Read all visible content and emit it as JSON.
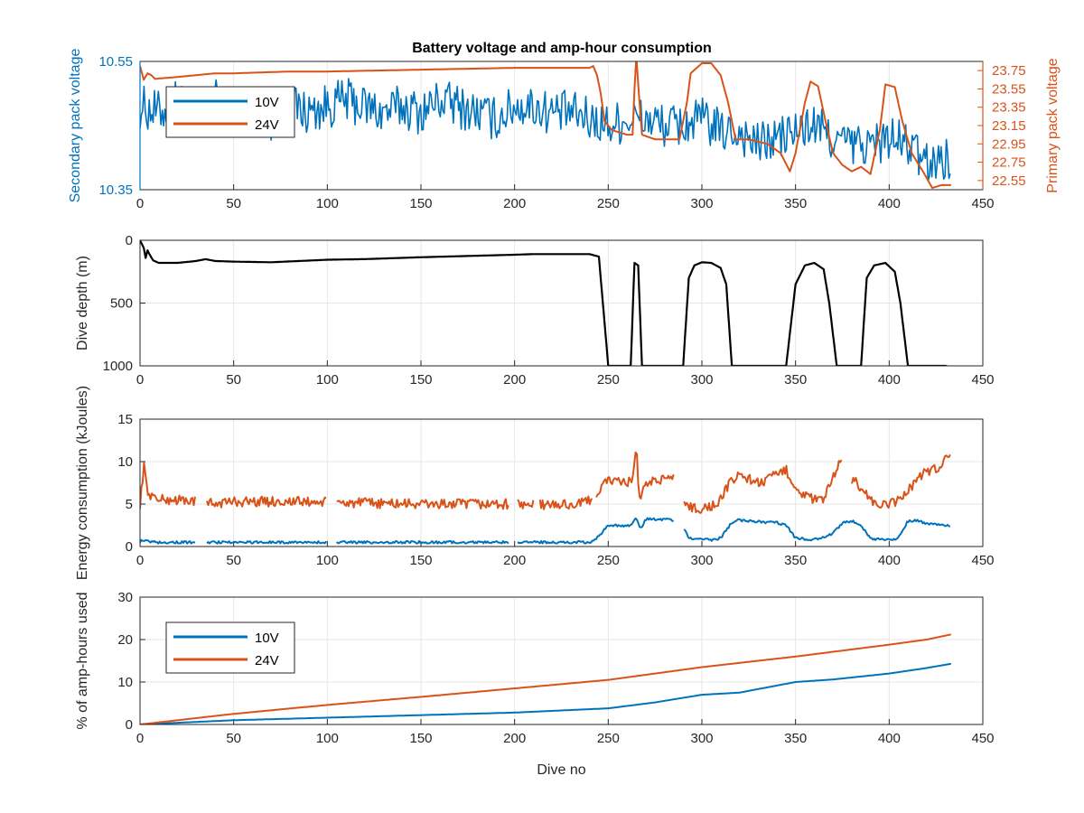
{
  "figure": {
    "title": "Battery voltage and amp-hour consumption",
    "colors": {
      "blue": "#0072bd",
      "orange": "#d95319",
      "black": "#000000",
      "grid": "#e6e6e6",
      "axis": "#262626"
    }
  },
  "chart_data": [
    {
      "type": "line",
      "title": "Battery voltage and amp-hour consumption",
      "xlabel": "",
      "ylabel_left": "Secondary pack voltage",
      "ylabel_right": "Primary pack voltage",
      "xlim": [
        0,
        450
      ],
      "ylim_left": [
        10.35,
        10.55
      ],
      "ylim_right": [
        22.45,
        23.85
      ],
      "x_ticks": [
        "0",
        "50",
        "100",
        "150",
        "200",
        "250",
        "300",
        "350",
        "400",
        "450"
      ],
      "y_ticks_left": [
        "10.35",
        "10.55"
      ],
      "y_ticks_right": [
        "22.55",
        "22.75",
        "22.95",
        "23.15",
        "23.35",
        "23.55",
        "23.75"
      ],
      "grid": true,
      "legend": {
        "placement": "top-left",
        "entries": [
          "10V",
          "24V"
        ]
      },
      "series": [
        {
          "name": "10V",
          "axis": "left",
          "color": "#0072bd",
          "x": [
            0,
            10,
            20,
            30,
            40,
            50,
            60,
            70,
            80,
            90,
            100,
            110,
            120,
            130,
            140,
            150,
            160,
            170,
            180,
            190,
            200,
            210,
            220,
            230,
            240,
            250,
            260,
            270,
            280,
            290,
            300,
            310,
            320,
            330,
            340,
            350,
            360,
            370,
            380,
            390,
            400,
            410,
            420,
            430,
            433
          ],
          "y": [
            10.48,
            10.47,
            10.49,
            10.47,
            10.49,
            10.47,
            10.48,
            10.46,
            10.48,
            10.47,
            10.48,
            10.49,
            10.48,
            10.47,
            10.48,
            10.47,
            10.49,
            10.48,
            10.47,
            10.46,
            10.48,
            10.48,
            10.47,
            10.47,
            10.46,
            10.45,
            10.46,
            10.46,
            10.45,
            10.45,
            10.46,
            10.44,
            10.44,
            10.42,
            10.43,
            10.44,
            10.45,
            10.43,
            10.42,
            10.42,
            10.43,
            10.42,
            10.39,
            10.4,
            10.4
          ],
          "noise": 0.035
        },
        {
          "name": "24V",
          "axis": "right",
          "color": "#d95319",
          "x": [
            0,
            2,
            4,
            6,
            8,
            20,
            30,
            40,
            50,
            80,
            100,
            150,
            200,
            240,
            242,
            244,
            246,
            248,
            252,
            260,
            263,
            264,
            265,
            266,
            268,
            275,
            285,
            288,
            292,
            294,
            300,
            305,
            310,
            314,
            318,
            325,
            335,
            342,
            347,
            350,
            355,
            358,
            362,
            366,
            370,
            375,
            380,
            385,
            390,
            395,
            398,
            403,
            407,
            412,
            418,
            423,
            428,
            433
          ],
          "y": [
            23.8,
            23.65,
            23.72,
            23.7,
            23.66,
            23.68,
            23.7,
            23.72,
            23.72,
            23.74,
            23.74,
            23.76,
            23.78,
            23.78,
            23.8,
            23.7,
            23.5,
            23.2,
            23.1,
            23.05,
            23.05,
            23.55,
            23.9,
            23.6,
            23.05,
            23.0,
            23.0,
            23.0,
            23.4,
            23.72,
            23.83,
            23.83,
            23.7,
            23.4,
            23.0,
            23.0,
            22.95,
            22.85,
            22.65,
            22.85,
            23.4,
            23.63,
            23.58,
            23.2,
            22.85,
            22.72,
            22.65,
            22.7,
            22.62,
            23.1,
            23.6,
            23.57,
            23.2,
            22.85,
            22.65,
            22.47,
            22.5,
            22.5
          ]
        }
      ]
    },
    {
      "type": "line",
      "title": "",
      "xlabel": "",
      "ylabel": "Dive depth (m)",
      "xlim": [
        0,
        450
      ],
      "ylim": [
        0,
        1000
      ],
      "y_reversed": true,
      "x_ticks": [
        "0",
        "50",
        "100",
        "150",
        "200",
        "250",
        "300",
        "350",
        "400",
        "450"
      ],
      "y_ticks": [
        "0",
        "500",
        "1000"
      ],
      "grid": true,
      "series": [
        {
          "color": "#000000",
          "x": [
            0,
            2,
            3,
            4,
            5,
            7,
            10,
            20,
            30,
            35,
            40,
            50,
            70,
            100,
            120,
            150,
            200,
            210,
            220,
            240,
            245,
            250,
            252,
            260,
            262,
            264,
            266,
            268,
            270,
            275,
            290,
            293,
            296,
            300,
            305,
            310,
            313,
            316,
            320,
            335,
            345,
            350,
            355,
            360,
            365,
            368,
            372,
            380,
            385,
            388,
            392,
            398,
            403,
            406,
            410,
            420,
            430,
            433
          ],
          "y": [
            0,
            60,
            140,
            80,
            110,
            160,
            180,
            180,
            165,
            150,
            165,
            170,
            175,
            155,
            150,
            135,
            115,
            110,
            110,
            110,
            130,
            1000,
            1000,
            1000,
            1000,
            180,
            200,
            1000,
            1000,
            1000,
            1000,
            300,
            200,
            175,
            180,
            220,
            350,
            1000,
            1000,
            1000,
            1000,
            350,
            200,
            180,
            230,
            500,
            1000,
            1000,
            1000,
            300,
            200,
            180,
            250,
            500,
            1000,
            1000,
            1000,
            1010
          ]
        }
      ]
    },
    {
      "type": "line",
      "title": "",
      "xlabel": "",
      "ylabel": "Energy consumption (kJoules)",
      "xlim": [
        0,
        450
      ],
      "ylim": [
        0,
        15
      ],
      "x_ticks": [
        "0",
        "50",
        "100",
        "150",
        "200",
        "250",
        "300",
        "350",
        "400",
        "450"
      ],
      "y_ticks": [
        "0",
        "5",
        "10",
        "15"
      ],
      "grid": true,
      "series": [
        {
          "name": "24V",
          "color": "#d95319",
          "x": [
            0,
            2,
            4,
            6,
            10,
            20,
            28,
            35,
            50,
            80,
            100,
            150,
            190,
            195,
            200,
            220,
            235,
            240,
            245,
            250,
            255,
            260,
            263,
            265,
            266,
            267,
            270,
            280,
            285,
            290,
            295,
            300,
            305,
            310,
            315,
            320,
            325,
            330,
            335,
            340,
            345,
            350,
            355,
            360,
            365,
            370,
            375,
            380,
            385,
            390,
            395,
            400,
            405,
            410,
            415,
            420,
            425,
            430,
            433
          ],
          "y": [
            5,
            9.5,
            6.5,
            6,
            5.5,
            5.5,
            5.4,
            5,
            5.3,
            5.3,
            5.2,
            5,
            5,
            5,
            5,
            4.9,
            5,
            5.5,
            6.5,
            8,
            7.5,
            7.5,
            8,
            12,
            7,
            5,
            7.5,
            8,
            8,
            5.5,
            4.5,
            4.5,
            4.7,
            5.5,
            7.5,
            8.5,
            8,
            7.5,
            7.8,
            8.5,
            9,
            7,
            6,
            5.5,
            5.5,
            8,
            10.5,
            8,
            7,
            5.5,
            4.8,
            4.9,
            5.5,
            6.5,
            8,
            9,
            9,
            10.5,
            10.5
          ],
          "gaps": [
            [
              30,
              35
            ],
            [
              100,
              105
            ],
            [
              197,
              201
            ],
            [
              210,
              213
            ],
            [
              242,
              243
            ],
            [
              285,
              290
            ],
            [
              375,
              380
            ]
          ],
          "noise": 0.6
        },
        {
          "name": "10V",
          "color": "#0072bd",
          "x": [
            0,
            3,
            5,
            10,
            50,
            100,
            150,
            200,
            240,
            245,
            250,
            255,
            260,
            262,
            265,
            267,
            270,
            280,
            288,
            293,
            300,
            305,
            310,
            315,
            318,
            325,
            340,
            345,
            350,
            360,
            370,
            375,
            380,
            385,
            390,
            395,
            400,
            405,
            410,
            415,
            420,
            430,
            433
          ],
          "y": [
            0.6,
            0.8,
            0.6,
            0.5,
            0.5,
            0.5,
            0.5,
            0.5,
            0.5,
            1.2,
            2.5,
            2.5,
            2.4,
            2.5,
            3.4,
            2.0,
            3.2,
            3.2,
            3.0,
            1.0,
            0.8,
            0.8,
            1.0,
            2.5,
            3.1,
            3.0,
            2.8,
            2.5,
            1.0,
            0.8,
            1.5,
            2.8,
            3.0,
            2.5,
            1.0,
            0.8,
            0.8,
            1.0,
            3.0,
            3.1,
            2.7,
            2.5,
            2.5
          ],
          "gaps": [
            [
              30,
              35
            ],
            [
              100,
              105
            ],
            [
              197,
              201
            ],
            [
              285,
              290
            ]
          ],
          "noise": 0.15
        }
      ]
    },
    {
      "type": "line",
      "title": "",
      "xlabel": "Dive no",
      "ylabel": "% of amp-hours used",
      "xlim": [
        0,
        450
      ],
      "ylim": [
        0,
        30
      ],
      "x_ticks": [
        "0",
        "50",
        "100",
        "150",
        "200",
        "250",
        "300",
        "350",
        "400",
        "450"
      ],
      "y_ticks": [
        "0",
        "10",
        "20",
        "30"
      ],
      "grid": true,
      "legend": {
        "placement": "top-left",
        "entries": [
          "10V",
          "24V"
        ]
      },
      "series": [
        {
          "name": "10V",
          "color": "#0072bd",
          "x": [
            0,
            50,
            100,
            150,
            200,
            250,
            275,
            300,
            320,
            350,
            370,
            400,
            420,
            433
          ],
          "y": [
            0,
            1.0,
            1.6,
            2.2,
            2.8,
            3.8,
            5.2,
            7.0,
            7.5,
            10.0,
            10.6,
            12.0,
            13.3,
            14.3
          ]
        },
        {
          "name": "24V",
          "color": "#d95319",
          "x": [
            0,
            50,
            100,
            150,
            200,
            250,
            300,
            350,
            400,
            420,
            433
          ],
          "y": [
            0,
            2.5,
            4.6,
            6.5,
            8.5,
            10.5,
            13.5,
            16.0,
            18.8,
            20.0,
            21.2
          ]
        }
      ]
    }
  ]
}
